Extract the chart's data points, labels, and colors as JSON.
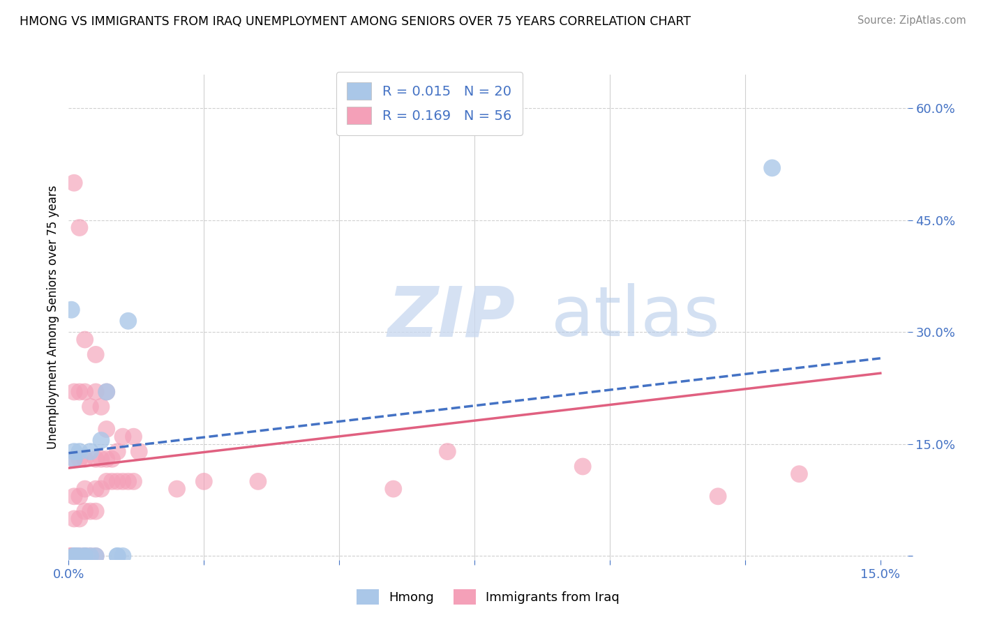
{
  "title": "HMONG VS IMMIGRANTS FROM IRAQ UNEMPLOYMENT AMONG SENIORS OVER 75 YEARS CORRELATION CHART",
  "source": "Source: ZipAtlas.com",
  "ylabel": "Unemployment Among Seniors over 75 years",
  "xlim": [
    0.0,
    0.155
  ],
  "ylim": [
    -0.005,
    0.645
  ],
  "R1": 0.015,
  "N1": 20,
  "R2": 0.169,
  "N2": 56,
  "hmong_color": "#aac7e8",
  "iraq_color": "#f4a0b8",
  "hmong_line_color": "#4472c4",
  "iraq_line_color": "#e06080",
  "axis_color": "#4472c4",
  "background_color": "#ffffff",
  "grid_color": "#d0d0d0",
  "legend_label1": "Hmong",
  "legend_label2": "Immigrants from Iraq",
  "hmong_trend_x": [
    0.0,
    0.15
  ],
  "hmong_trend_y": [
    0.138,
    0.265
  ],
  "iraq_trend_x": [
    0.0,
    0.15
  ],
  "iraq_trend_y": [
    0.118,
    0.245
  ],
  "xtick_positions": [
    0.0,
    0.025,
    0.05,
    0.075,
    0.1,
    0.125,
    0.15
  ],
  "xtick_labels": [
    "0.0%",
    "",
    "",
    "",
    "",
    "",
    "15.0%"
  ],
  "ytick_positions": [
    0.0,
    0.15,
    0.3,
    0.45,
    0.6
  ],
  "ytick_labels_right": [
    "",
    "15.0%",
    "30.0%",
    "45.0%",
    "60.0%"
  ],
  "hmong_x": [
    0.0005,
    0.001,
    0.001,
    0.001,
    0.001,
    0.0015,
    0.002,
    0.002,
    0.003,
    0.003,
    0.004,
    0.004,
    0.005,
    0.006,
    0.007,
    0.009,
    0.009,
    0.01,
    0.011,
    0.13
  ],
  "hmong_y": [
    0.33,
    0.0,
    0.0,
    0.13,
    0.14,
    0.0,
    0.0,
    0.14,
    0.0,
    0.0,
    0.0,
    0.14,
    0.0,
    0.155,
    0.22,
    0.0,
    0.0,
    0.0,
    0.315,
    0.52
  ],
  "iraq_x": [
    0.0003,
    0.0005,
    0.001,
    0.001,
    0.001,
    0.001,
    0.001,
    0.001,
    0.0015,
    0.002,
    0.002,
    0.002,
    0.002,
    0.002,
    0.002,
    0.003,
    0.003,
    0.003,
    0.003,
    0.003,
    0.003,
    0.003,
    0.004,
    0.004,
    0.004,
    0.005,
    0.005,
    0.005,
    0.005,
    0.005,
    0.005,
    0.006,
    0.006,
    0.006,
    0.007,
    0.007,
    0.007,
    0.007,
    0.008,
    0.008,
    0.009,
    0.009,
    0.01,
    0.01,
    0.011,
    0.012,
    0.012,
    0.013,
    0.02,
    0.025,
    0.035,
    0.06,
    0.07,
    0.095,
    0.12,
    0.135
  ],
  "iraq_y": [
    0.0,
    0.0,
    0.0,
    0.05,
    0.08,
    0.13,
    0.22,
    0.5,
    0.0,
    0.0,
    0.05,
    0.08,
    0.13,
    0.22,
    0.44,
    0.0,
    0.0,
    0.06,
    0.09,
    0.13,
    0.22,
    0.29,
    0.0,
    0.06,
    0.2,
    0.0,
    0.06,
    0.09,
    0.13,
    0.22,
    0.27,
    0.09,
    0.13,
    0.2,
    0.1,
    0.13,
    0.17,
    0.22,
    0.1,
    0.13,
    0.1,
    0.14,
    0.1,
    0.16,
    0.1,
    0.1,
    0.16,
    0.14,
    0.09,
    0.1,
    0.1,
    0.09,
    0.14,
    0.12,
    0.08,
    0.11
  ]
}
